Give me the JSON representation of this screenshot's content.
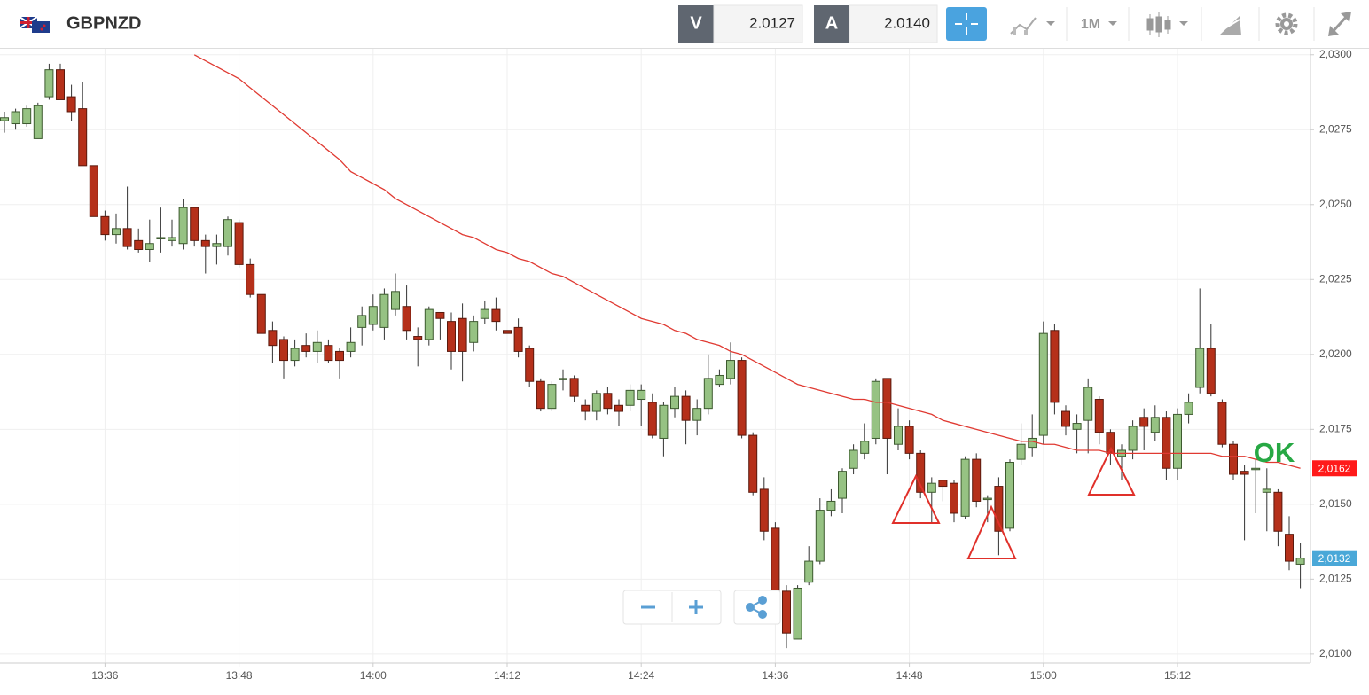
{
  "header": {
    "symbol": "GBPNZD",
    "bid_label": "V",
    "bid": "2.0127",
    "ask_label": "A",
    "ask": "2.0140",
    "timeframe": "1M"
  },
  "chart_data": {
    "type": "candlestick",
    "categories": [
      null,
      null,
      null,
      null,
      null,
      null,
      null,
      null,
      null,
      "13:36",
      null,
      null,
      null,
      null,
      null,
      null,
      null,
      null,
      null,
      null,
      null,
      "13:48",
      null,
      null,
      null,
      null,
      null,
      null,
      null,
      null,
      null,
      null,
      null,
      "14:00",
      null,
      null,
      null,
      null,
      null,
      null,
      null,
      null,
      null,
      null,
      null,
      "14:12",
      null,
      null,
      null,
      null,
      null,
      null,
      null,
      null,
      null,
      null,
      null,
      "14:24",
      null,
      null,
      null,
      null,
      null,
      null,
      null,
      null,
      null,
      null,
      null,
      "14:36",
      null,
      null,
      null,
      null,
      null,
      null,
      null,
      null,
      null,
      null,
      null,
      "14:48",
      null,
      null,
      null,
      null,
      null,
      null,
      null,
      null,
      null,
      null,
      null,
      "15:00",
      null,
      null,
      null,
      null,
      null,
      null,
      null,
      null,
      null,
      null,
      null,
      "15:12",
      null,
      null,
      null,
      null,
      null,
      null,
      null,
      null,
      null,
      null,
      null
    ],
    "candles": {
      "up_color": "#96c283",
      "down_color": "#b5301a",
      "open": [
        2.0278,
        2.0277,
        2.0277,
        2.0272,
        2.0286,
        2.0295,
        2.0286,
        2.0282,
        2.0263,
        2.0246,
        2.024,
        2.0242,
        2.0238,
        2.0235,
        2.0239,
        2.0238,
        2.0237,
        2.0249,
        2.0238,
        2.0236,
        2.0236,
        2.0244,
        2.023,
        2.022,
        2.0208,
        2.0205,
        2.0198,
        2.0203,
        2.0201,
        2.0203,
        2.0201,
        2.0201,
        2.0209,
        2.021,
        2.0209,
        2.0215,
        2.0216,
        2.0206,
        2.0205,
        2.0214,
        2.0211,
        2.0212,
        2.0204,
        2.0212,
        2.0215,
        2.0208,
        2.0209,
        2.0202,
        2.0191,
        2.0182,
        2.0192,
        2.0192,
        2.0183,
        2.0181,
        2.0187,
        2.0183,
        2.0183,
        2.0185,
        2.0184,
        2.0172,
        2.0182,
        2.0186,
        2.0178,
        2.0182,
        2.019,
        2.0192,
        2.0198,
        2.0173,
        2.0155,
        2.0142,
        2.0121,
        2.0105,
        2.0124,
        2.0131,
        2.0148,
        2.0152,
        2.0162,
        2.0167,
        2.0172,
        2.0192,
        2.017,
        2.0176,
        2.0167,
        2.0154,
        2.0158,
        2.0157,
        2.0146,
        2.0165,
        2.0152,
        2.0156,
        2.0142,
        2.0165,
        2.0169,
        2.0173,
        2.0208,
        2.0181,
        2.0175,
        2.0178,
        2.0185,
        2.0174,
        2.0166,
        2.0168,
        2.0179,
        2.0174,
        2.0179,
        2.0162,
        2.018,
        2.0189,
        2.0202,
        2.0184,
        2.017,
        2.0161,
        2.0162,
        2.0154,
        2.0154,
        2.014,
        2.013
      ],
      "high": [
        2.0281,
        2.0282,
        2.0283,
        2.0284,
        2.0297,
        2.0297,
        2.029,
        2.0291,
        2.0263,
        2.0248,
        2.0247,
        2.0256,
        2.0242,
        2.0245,
        2.0249,
        2.0245,
        2.0252,
        2.0249,
        2.024,
        2.024,
        2.0246,
        2.0245,
        2.0232,
        2.022,
        2.0211,
        2.0206,
        2.0205,
        2.0207,
        2.0208,
        2.0205,
        2.0202,
        2.0209,
        2.0216,
        2.022,
        2.0222,
        2.0227,
        2.0223,
        2.0209,
        2.0216,
        2.0214,
        2.0214,
        2.0217,
        2.0213,
        2.0218,
        2.0219,
        2.0208,
        2.0212,
        2.0203,
        2.0192,
        2.0191,
        2.0195,
        2.0193,
        2.0185,
        2.0188,
        2.0189,
        2.0185,
        2.019,
        2.019,
        2.0187,
        2.0184,
        2.0189,
        2.0188,
        2.0185,
        2.02,
        2.0195,
        2.0204,
        2.0199,
        2.0174,
        2.0159,
        2.0144,
        2.0123,
        2.0123,
        2.0136,
        2.0152,
        2.0155,
        2.0162,
        2.017,
        2.0177,
        2.0192,
        2.0192,
        2.0182,
        2.0178,
        2.0168,
        2.0159,
        2.0158,
        2.0158,
        2.0166,
        2.0167,
        2.0153,
        2.0159,
        2.0165,
        2.0177,
        2.018,
        2.0211,
        2.021,
        2.0183,
        2.018,
        2.0192,
        2.0186,
        2.0175,
        2.017,
        2.0178,
        2.0182,
        2.0183,
        2.0181,
        2.0182,
        2.0187,
        2.0222,
        2.021,
        2.0185,
        2.0171,
        2.0163,
        2.0165,
        2.0162,
        2.0155,
        2.0146,
        2.0137
      ],
      "low": [
        2.0274,
        2.0275,
        2.0276,
        2.0272,
        2.0285,
        2.0285,
        2.0278,
        2.0263,
        2.0246,
        2.0238,
        2.0237,
        2.0235,
        2.0234,
        2.0231,
        2.0234,
        2.0236,
        2.0235,
        2.0236,
        2.0227,
        2.023,
        2.0233,
        2.0229,
        2.0219,
        2.0207,
        2.0197,
        2.0192,
        2.0196,
        2.0199,
        2.0197,
        2.0197,
        2.0192,
        2.0199,
        2.0203,
        2.0208,
        2.0205,
        2.0213,
        2.0205,
        2.0196,
        2.0203,
        2.0205,
        2.0195,
        2.0191,
        2.0201,
        2.021,
        2.0208,
        2.0207,
        2.0199,
        2.0189,
        2.0181,
        2.0181,
        2.0188,
        2.0184,
        2.0178,
        2.0178,
        2.018,
        2.0176,
        2.0181,
        2.0176,
        2.0172,
        2.0166,
        2.0179,
        2.017,
        2.0173,
        2.018,
        2.0189,
        2.019,
        2.0172,
        2.0153,
        2.0138,
        2.0118,
        2.0102,
        2.0105,
        2.0123,
        2.013,
        2.0146,
        2.0147,
        2.016,
        2.0165,
        2.017,
        2.016,
        2.0168,
        2.0165,
        2.0152,
        2.0144,
        2.0151,
        2.0144,
        2.0145,
        2.0149,
        2.0144,
        2.0133,
        2.0141,
        2.0163,
        2.0166,
        2.017,
        2.018,
        2.0173,
        2.0167,
        2.0167,
        2.017,
        2.0163,
        2.0158,
        2.0165,
        2.0168,
        2.0171,
        2.0158,
        2.0158,
        2.0177,
        2.0187,
        2.0186,
        2.0169,
        2.0158,
        2.0138,
        2.0147,
        2.0141,
        2.0136,
        2.0128,
        2.0122
      ],
      "close": [
        2.0279,
        2.0281,
        2.0282,
        2.0283,
        2.0295,
        2.0285,
        2.0281,
        2.0263,
        2.0246,
        2.024,
        2.0242,
        2.0236,
        2.0235,
        2.0237,
        2.0239,
        2.0239,
        2.0249,
        2.0238,
        2.0236,
        2.0237,
        2.0245,
        2.023,
        2.022,
        2.0207,
        2.0203,
        2.0198,
        2.0202,
        2.0201,
        2.0204,
        2.0198,
        2.0198,
        2.0204,
        2.0213,
        2.0216,
        2.022,
        2.0221,
        2.0208,
        2.0205,
        2.0215,
        2.0212,
        2.0201,
        2.0201,
        2.0211,
        2.0215,
        2.0211,
        2.0207,
        2.0201,
        2.0191,
        2.0182,
        2.019,
        2.0192,
        2.0186,
        2.0181,
        2.0187,
        2.0182,
        2.0181,
        2.0188,
        2.0188,
        2.0173,
        2.0183,
        2.0186,
        2.0178,
        2.0182,
        2.0192,
        2.0193,
        2.0198,
        2.0173,
        2.0154,
        2.0141,
        2.0121,
        2.0107,
        2.0122,
        2.0131,
        2.0148,
        2.0151,
        2.0161,
        2.0168,
        2.0171,
        2.0191,
        2.0172,
        2.0176,
        2.0167,
        2.0154,
        2.0157,
        2.0156,
        2.0147,
        2.0165,
        2.0151,
        2.0152,
        2.0141,
        2.0164,
        2.017,
        2.0172,
        2.0207,
        2.0184,
        2.0176,
        2.0177,
        2.0189,
        2.0174,
        2.0167,
        2.0168,
        2.0176,
        2.0176,
        2.0179,
        2.0162,
        2.018,
        2.0184,
        2.0202,
        2.0187,
        2.017,
        2.016,
        2.016,
        2.0162,
        2.0155,
        2.0141,
        2.0131,
        2.0132
      ],
      "last_label": "2,0132",
      "last_color": "#4aa8d8"
    },
    "moving_average": {
      "color": "#e03a32",
      "values": [
        null,
        null,
        null,
        null,
        null,
        null,
        null,
        null,
        null,
        null,
        null,
        null,
        null,
        null,
        null,
        null,
        null,
        2.03,
        2.0298,
        2.0296,
        2.0294,
        2.0292,
        2.0289,
        2.0286,
        2.0283,
        2.028,
        2.0277,
        2.0274,
        2.0271,
        2.0268,
        2.0265,
        2.0261,
        2.0259,
        2.0257,
        2.0255,
        2.0252,
        2.025,
        2.0248,
        2.0246,
        2.0244,
        2.0242,
        2.024,
        2.0239,
        2.0237,
        2.0235,
        2.0234,
        2.0232,
        2.0231,
        2.0229,
        2.0227,
        2.0226,
        2.0224,
        2.0222,
        2.022,
        2.0218,
        2.0216,
        2.0214,
        2.0212,
        2.0211,
        2.021,
        2.0208,
        2.0207,
        2.0205,
        2.0204,
        2.0203,
        2.0201,
        2.02,
        2.0198,
        2.0196,
        2.0194,
        2.0192,
        2.019,
        2.0189,
        2.0188,
        2.0187,
        2.0186,
        2.0185,
        2.0185,
        2.0184,
        2.0184,
        2.0183,
        2.0182,
        2.0181,
        2.018,
        2.0178,
        2.0177,
        2.0176,
        2.0175,
        2.0174,
        2.0173,
        2.0172,
        2.0171,
        2.0171,
        2.017,
        2.017,
        2.0169,
        2.0168,
        2.0168,
        2.0168,
        2.0167,
        2.0167,
        2.0167,
        2.0167,
        2.0167,
        2.0167,
        2.0167,
        2.0167,
        2.0167,
        2.0167,
        2.0166,
        2.0166,
        2.0166,
        2.0165,
        2.0164,
        2.0164,
        2.0163,
        2.0162
      ],
      "last_label": "2,0162",
      "last_color": "#ff1a1a"
    },
    "ylim": [
      2.0097,
      2.0302
    ],
    "yticks": [
      {
        "value": 2.01,
        "label": "2,0100"
      },
      {
        "value": 2.0125,
        "label": "2,0125"
      },
      {
        "value": 2.015,
        "label": "2,0150"
      },
      {
        "value": 2.0175,
        "label": "2,0175"
      },
      {
        "value": 2.02,
        "label": "2,0200"
      },
      {
        "value": 2.0225,
        "label": "2,0225"
      },
      {
        "value": 2.025,
        "label": "2,0250"
      },
      {
        "value": 2.0275,
        "label": "2,0275"
      },
      {
        "value": 2.03,
        "label": "2,0300"
      }
    ],
    "grid": true,
    "annotation": "OK"
  }
}
